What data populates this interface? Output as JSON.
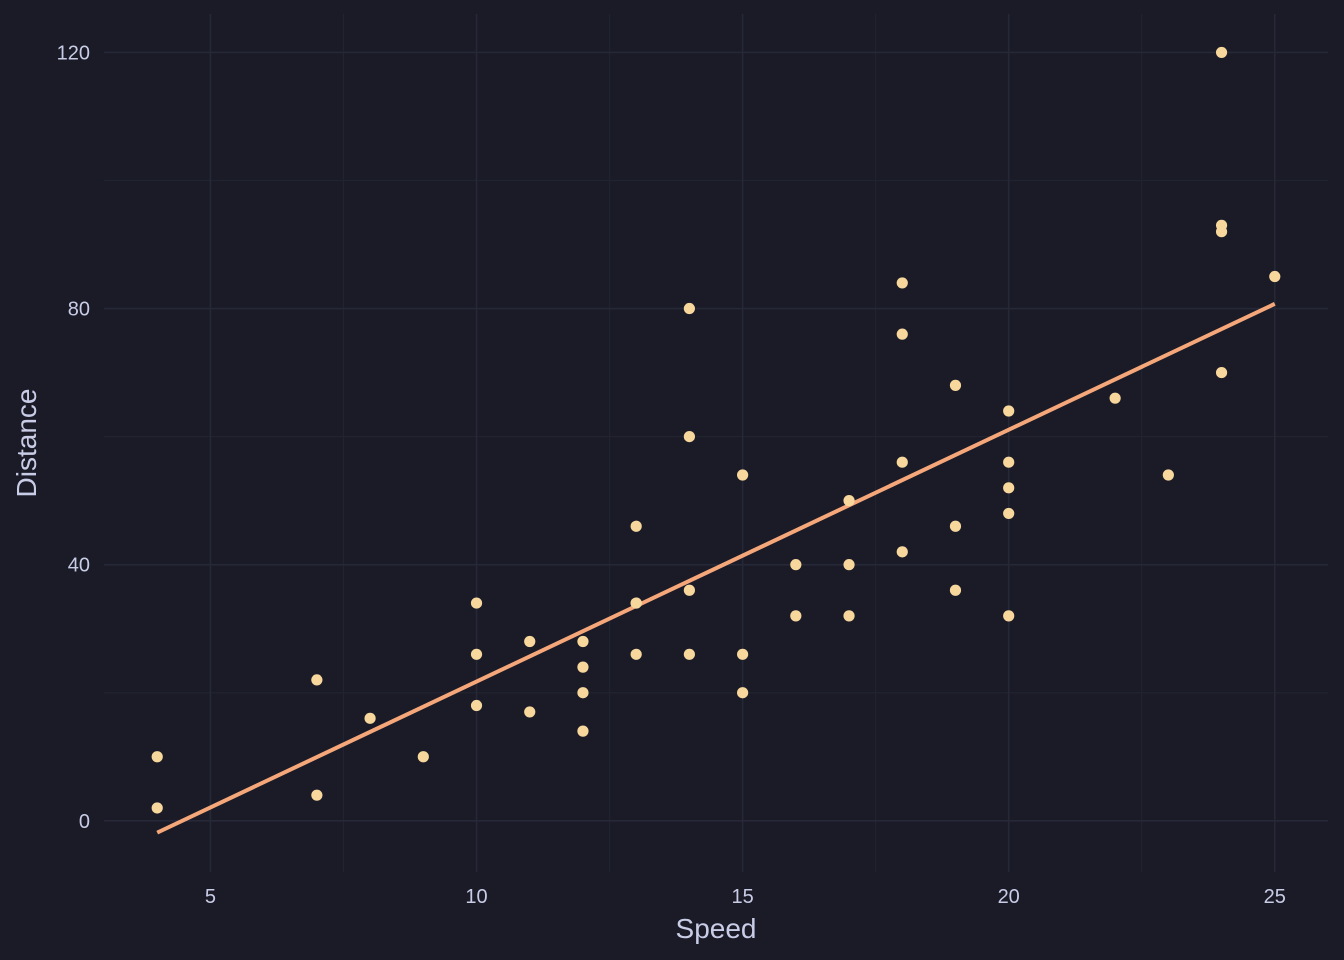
{
  "chart_data": {
    "type": "scatter",
    "title": "",
    "xlabel": "Speed",
    "ylabel": "Distance",
    "xlim": [
      3,
      26
    ],
    "ylim": [
      -8,
      126
    ],
    "x_ticks": [
      5,
      10,
      15,
      20,
      25
    ],
    "y_ticks": [
      0,
      40,
      80,
      120
    ],
    "grid": true,
    "legend": "none",
    "points": [
      [
        4,
        2
      ],
      [
        4,
        10
      ],
      [
        7,
        4
      ],
      [
        7,
        22
      ],
      [
        8,
        16
      ],
      [
        9,
        10
      ],
      [
        10,
        18
      ],
      [
        10,
        26
      ],
      [
        10,
        34
      ],
      [
        11,
        17
      ],
      [
        11,
        28
      ],
      [
        12,
        14
      ],
      [
        12,
        20
      ],
      [
        12,
        24
      ],
      [
        12,
        28
      ],
      [
        13,
        26
      ],
      [
        13,
        34
      ],
      [
        13,
        34
      ],
      [
        13,
        46
      ],
      [
        14,
        26
      ],
      [
        14,
        36
      ],
      [
        14,
        60
      ],
      [
        14,
        80
      ],
      [
        15,
        20
      ],
      [
        15,
        26
      ],
      [
        15,
        54
      ],
      [
        16,
        32
      ],
      [
        16,
        40
      ],
      [
        17,
        32
      ],
      [
        17,
        40
      ],
      [
        17,
        50
      ],
      [
        18,
        42
      ],
      [
        18,
        56
      ],
      [
        18,
        76
      ],
      [
        18,
        84
      ],
      [
        19,
        36
      ],
      [
        19,
        46
      ],
      [
        19,
        68
      ],
      [
        20,
        32
      ],
      [
        20,
        48
      ],
      [
        20,
        52
      ],
      [
        20,
        56
      ],
      [
        20,
        64
      ],
      [
        22,
        66
      ],
      [
        23,
        54
      ],
      [
        24,
        70
      ],
      [
        24,
        92
      ],
      [
        24,
        93
      ],
      [
        24,
        120
      ],
      [
        25,
        85
      ]
    ],
    "trend_line": {
      "x": [
        4,
        25
      ],
      "y": [
        -1.85,
        80.73
      ]
    },
    "colors": {
      "background": "#1a1b27",
      "points": "#f7d79c",
      "trend_line": "#f5a77a",
      "text": "#c9cce6"
    }
  }
}
